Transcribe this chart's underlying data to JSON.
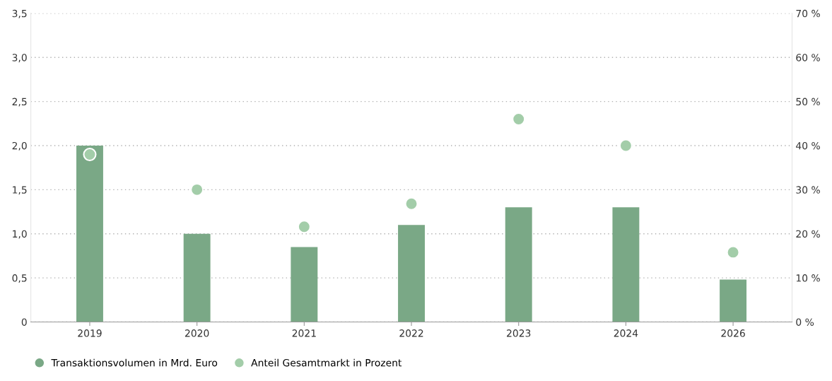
{
  "chart_data": {
    "type": "bar",
    "categories": [
      "2019",
      "2020",
      "2021",
      "2022",
      "2023",
      "2024",
      "2026"
    ],
    "series": [
      {
        "name": "Transaktionsvolumen in Mrd. Euro",
        "color": "#7aa886",
        "values": [
          2.0,
          1.0,
          0.85,
          1.1,
          1.3,
          1.3,
          0.48
        ]
      },
      {
        "name": "Anteil Gesamtmarkt in Prozent",
        "type": "scatter",
        "axis": "y2",
        "color": "#a3cda9",
        "values": [
          38,
          30,
          21.6,
          26.8,
          46,
          40,
          15.8
        ]
      }
    ],
    "ylim": [
      0,
      3.5
    ],
    "yticks": [
      0,
      {
        "value": 0.5,
        "label": "0,5"
      },
      {
        "value": 1.0,
        "label": "1,0"
      },
      {
        "value": 1.5,
        "label": "1,5"
      },
      {
        "value": 2.0,
        "label": "2,0"
      },
      {
        "value": 2.5,
        "label": "2,5"
      },
      {
        "value": 3.0,
        "label": "3,0"
      },
      {
        "value": 3.5,
        "label": "3,5"
      }
    ],
    "y2lim": [
      0,
      70
    ],
    "y2ticks": [
      {
        "value": 0,
        "label": "0 %"
      },
      {
        "value": 10,
        "label": "10 %"
      },
      {
        "value": 20,
        "label": "20 %"
      },
      {
        "value": 30,
        "label": "30 %"
      },
      {
        "value": 40,
        "label": "40 %"
      },
      {
        "value": 50,
        "label": "50 %"
      },
      {
        "value": 60,
        "label": "60 %"
      },
      {
        "value": 70,
        "label": "70 %"
      }
    ],
    "grid": "y",
    "legend": "bottom left",
    "marker": "circle"
  }
}
